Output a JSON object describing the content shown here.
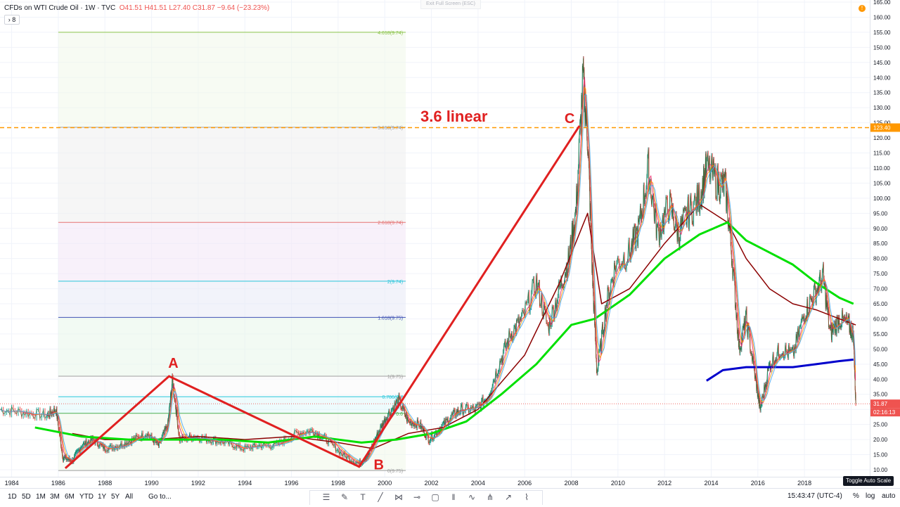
{
  "header": {
    "symbol": "CFDs on WTI Crude Oil · 1W · TVC",
    "open": "O41.51",
    "high": "H41.51",
    "low": "L27.40",
    "close": "C31.87",
    "change": "−9.64 (−23.23%)",
    "collapse_label": "8",
    "exit_fullscreen": "Exit Full Screen (ESC)",
    "alert_label": "!"
  },
  "colors": {
    "down": "#ef5350",
    "up": "#26a69a",
    "ma_green": "#00e000",
    "ma_darkred": "#8b0000",
    "ma_blue": "#0000cc",
    "annotation_red": "#e02020",
    "horizontal_orange": "#ff9800"
  },
  "annotations": {
    "point_a": "A",
    "point_b": "B",
    "point_c": "C",
    "text": "3.6 linear"
  },
  "fib_levels": [
    {
      "label": "4.618(9.74)",
      "value": 155.0,
      "color": "#8bc34a"
    },
    {
      "label": "3.618(9.74)",
      "value": 123.5,
      "color": "#9e9e9e"
    },
    {
      "label": "2.618(9.74)",
      "value": 92.0,
      "color": "#e57373"
    },
    {
      "label": "2(9.74)",
      "value": 72.5,
      "color": "#26c6da"
    },
    {
      "label": "1.618(9.75)",
      "value": 60.5,
      "color": "#3f51b5"
    },
    {
      "label": "1(9.75)",
      "value": 41.0,
      "color": "#9e9e9e"
    },
    {
      "label": "0.786(9.7",
      "value": 34.2,
      "color": "#26c6da"
    },
    {
      "label": "0.6",
      "value": 28.7,
      "color": "#4caf50"
    },
    {
      "label": "0(9.75)",
      "value": 9.75,
      "color": "#9e9e9e"
    }
  ],
  "price_axis": {
    "ticks": [
      "165.00",
      "160.00",
      "155.00",
      "150.00",
      "145.00",
      "140.00",
      "135.00",
      "130.00",
      "125.00",
      "120.00",
      "115.00",
      "110.00",
      "105.00",
      "100.00",
      "95.00",
      "90.00",
      "85.00",
      "80.00",
      "75.00",
      "70.00",
      "65.00",
      "60.00",
      "55.00",
      "50.00",
      "45.00",
      "40.00",
      "35.00",
      "30.00",
      "25.00",
      "20.00",
      "15.00",
      "10.00"
    ],
    "orange_label": "123.40",
    "last_price_label": "31.87",
    "countdown_label": "02:16:13"
  },
  "time_axis": {
    "ticks": [
      "1984",
      "1986",
      "1988",
      "1990",
      "1992",
      "1994",
      "1996",
      "1998",
      "2000",
      "2002",
      "2004",
      "2006",
      "2008",
      "2010",
      "2012",
      "2014",
      "2016",
      "2018",
      "2020"
    ]
  },
  "bottom_bar": {
    "ranges": [
      "1D",
      "5D",
      "1M",
      "3M",
      "6M",
      "YTD",
      "1Y",
      "5Y",
      "All"
    ],
    "goto": "Go to...",
    "clock": "15:43:47 (UTC-4)",
    "percent": "%",
    "log": "log",
    "auto": "auto",
    "toggle_tip": "Toggle Auto Scale"
  },
  "chart_data": {
    "type": "line",
    "title": "",
    "xlabel": "",
    "ylabel": "",
    "ylim": [
      9,
      166
    ],
    "xlim": [
      1983.5,
      2020.8
    ],
    "series": [
      {
        "name": "",
        "x": [
          1983.5,
          1984.5,
          1985.5,
          1985.9,
          1986.2,
          1986.6,
          1987.0,
          1987.5,
          1988.0,
          1988.6,
          1989.2,
          1989.8,
          1990.3,
          1990.7,
          1990.9,
          1991.2,
          1991.8,
          1992.5,
          1993.2,
          1993.9,
          1994.6,
          1995.3,
          1996.2,
          1996.9,
          1997.5,
          1998.2,
          1998.9,
          1999.3,
          1999.7,
          2000.1,
          2000.6,
          2001.0,
          2001.5,
          2001.9,
          2002.4,
          2002.9,
          2003.3,
          2003.9,
          2004.4,
          2004.9,
          2005.4,
          2005.9,
          2006.5,
          2007.0,
          2007.5,
          2007.9,
          2008.2,
          2008.5,
          2008.7,
          2008.9,
          2009.1,
          2009.5,
          2009.9,
          2010.5,
          2010.9,
          2011.3,
          2011.7,
          2012.2,
          2012.6,
          2013.0,
          2013.5,
          2013.8,
          2014.3,
          2014.6,
          2014.9,
          2015.2,
          2015.5,
          2015.9,
          2016.1,
          2016.5,
          2017.0,
          2017.5,
          2018.0,
          2018.4,
          2018.8,
          2019.1,
          2019.5,
          2019.9,
          2020.1,
          2020.2
        ],
        "y": [
          30,
          29,
          28,
          30,
          14,
          13,
          18,
          20,
          17,
          18,
          20,
          22,
          18,
          25,
          40,
          20,
          21,
          20,
          19,
          17,
          18,
          18,
          22,
          23,
          20,
          15,
          12,
          15,
          22,
          28,
          33,
          26,
          25,
          20,
          24,
          28,
          30,
          30,
          34,
          45,
          55,
          60,
          72,
          57,
          70,
          80,
          96,
          140,
          120,
          75,
          42,
          65,
          78,
          82,
          90,
          110,
          88,
          98,
          88,
          95,
          100,
          110,
          105,
          104,
          80,
          50,
          60,
          40,
          30,
          45,
          50,
          48,
          62,
          68,
          74,
          55,
          60,
          58,
          55,
          31.87
        ]
      },
      {
        "name": "",
        "x": [
          1986.6,
          1988,
          1990,
          1992,
          1994,
          1996,
          1998,
          1999.5,
          2001,
          2002.5,
          2004,
          2006,
          2007.5,
          2008.7,
          2009.3,
          2010.5,
          2012,
          2013.5,
          2014.7,
          2015.5,
          2016.5,
          2017.5,
          2018.5,
          2019.5,
          2020.2
        ],
        "y": [
          22,
          20,
          20,
          21,
          20,
          21,
          19,
          17,
          22,
          24,
          30,
          48,
          72,
          95,
          65,
          70,
          85,
          98,
          92,
          80,
          70,
          65,
          63,
          60,
          58
        ]
      },
      {
        "name": "",
        "x": [
          1985,
          1987,
          1989,
          1991,
          1993,
          1995,
          1997,
          1999,
          2000.5,
          2002,
          2003.5,
          2005,
          2006.5,
          2008,
          2009,
          2010.5,
          2012,
          2013.5,
          2014.7,
          2015.5,
          2016.5,
          2017.5,
          2018.5,
          2019.5,
          2020.1
        ],
        "y": [
          24,
          21,
          20,
          20,
          20,
          19,
          21,
          19,
          20,
          22,
          26,
          35,
          45,
          58,
          60,
          68,
          80,
          88,
          92,
          86,
          82,
          78,
          72,
          67,
          65
        ]
      },
      {
        "name": "",
        "x": [
          2013.8,
          2014.5,
          2015.5,
          2016.5,
          2017.5,
          2018.5,
          2019.5,
          2020.1
        ],
        "y": [
          39.5,
          43,
          44,
          44,
          44,
          45,
          46,
          46.5
        ]
      }
    ]
  }
}
